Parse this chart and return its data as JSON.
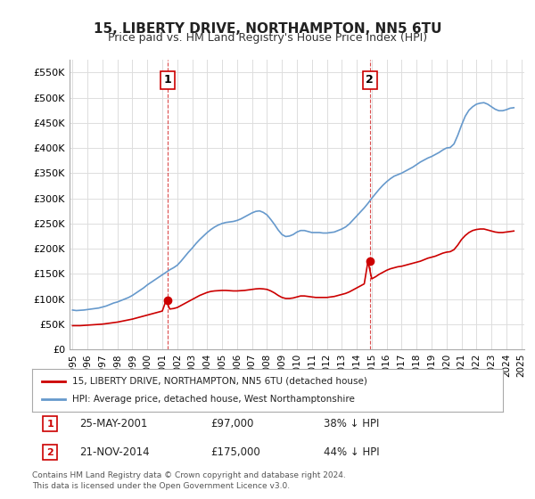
{
  "title": "15, LIBERTY DRIVE, NORTHAMPTON, NN5 6TU",
  "subtitle": "Price paid vs. HM Land Registry's House Price Index (HPI)",
  "legend_line1": "15, LIBERTY DRIVE, NORTHAMPTON, NN5 6TU (detached house)",
  "legend_line2": "HPI: Average price, detached house, West Northamptonshire",
  "footnote": "Contains HM Land Registry data © Crown copyright and database right 2024.\nThis data is licensed under the Open Government Licence v3.0.",
  "table_rows": [
    {
      "num": "1",
      "date": "25-MAY-2001",
      "price": "£97,000",
      "hpi": "38% ↓ HPI"
    },
    {
      "num": "2",
      "date": "21-NOV-2014",
      "price": "£175,000",
      "hpi": "44% ↓ HPI"
    }
  ],
  "sale_dates": [
    "2001-05-25",
    "2014-11-21"
  ],
  "sale_prices": [
    97000,
    175000
  ],
  "ylim": [
    0,
    575000
  ],
  "yticks": [
    0,
    50000,
    100000,
    150000,
    200000,
    250000,
    300000,
    350000,
    400000,
    450000,
    500000,
    550000
  ],
  "ytick_labels": [
    "£0",
    "£50K",
    "£100K",
    "£150K",
    "£200K",
    "£250K",
    "£300K",
    "£350K",
    "£400K",
    "£450K",
    "£500K",
    "£550K"
  ],
  "red_line_color": "#cc0000",
  "blue_line_color": "#6699cc",
  "annotation_color": "#cc0000",
  "background_color": "#ffffff",
  "grid_color": "#dddddd",
  "hpi_x": [
    1995.0,
    1995.25,
    1995.5,
    1995.75,
    1996.0,
    1996.25,
    1996.5,
    1996.75,
    1997.0,
    1997.25,
    1997.5,
    1997.75,
    1998.0,
    1998.25,
    1998.5,
    1998.75,
    1999.0,
    1999.25,
    1999.5,
    1999.75,
    2000.0,
    2000.25,
    2000.5,
    2000.75,
    2001.0,
    2001.25,
    2001.5,
    2001.75,
    2002.0,
    2002.25,
    2002.5,
    2002.75,
    2003.0,
    2003.25,
    2003.5,
    2003.75,
    2004.0,
    2004.25,
    2004.5,
    2004.75,
    2005.0,
    2005.25,
    2005.5,
    2005.75,
    2006.0,
    2006.25,
    2006.5,
    2006.75,
    2007.0,
    2007.25,
    2007.5,
    2007.75,
    2008.0,
    2008.25,
    2008.5,
    2008.75,
    2009.0,
    2009.25,
    2009.5,
    2009.75,
    2010.0,
    2010.25,
    2010.5,
    2010.75,
    2011.0,
    2011.25,
    2011.5,
    2011.75,
    2012.0,
    2012.25,
    2012.5,
    2012.75,
    2013.0,
    2013.25,
    2013.5,
    2013.75,
    2014.0,
    2014.25,
    2014.5,
    2014.75,
    2015.0,
    2015.25,
    2015.5,
    2015.75,
    2016.0,
    2016.25,
    2016.5,
    2016.75,
    2017.0,
    2017.25,
    2017.5,
    2017.75,
    2018.0,
    2018.25,
    2018.5,
    2018.75,
    2019.0,
    2019.25,
    2019.5,
    2019.75,
    2020.0,
    2020.25,
    2020.5,
    2020.75,
    2021.0,
    2021.25,
    2021.5,
    2021.75,
    2022.0,
    2022.25,
    2022.5,
    2022.75,
    2023.0,
    2023.25,
    2023.5,
    2023.75,
    2024.0,
    2024.25,
    2024.5
  ],
  "hpi_y": [
    78000,
    77000,
    77500,
    78000,
    79000,
    80000,
    81000,
    82000,
    84000,
    86000,
    89000,
    92000,
    94000,
    97000,
    100000,
    103000,
    107000,
    112000,
    117000,
    122000,
    128000,
    133000,
    138000,
    143000,
    148000,
    153000,
    158000,
    162000,
    167000,
    175000,
    184000,
    193000,
    201000,
    210000,
    218000,
    225000,
    232000,
    238000,
    243000,
    247000,
    250000,
    252000,
    253000,
    254000,
    256000,
    259000,
    263000,
    267000,
    271000,
    274000,
    275000,
    272000,
    267000,
    258000,
    248000,
    237000,
    228000,
    224000,
    225000,
    228000,
    233000,
    236000,
    236000,
    234000,
    232000,
    232000,
    232000,
    231000,
    231000,
    232000,
    233000,
    236000,
    239000,
    243000,
    249000,
    257000,
    265000,
    273000,
    281000,
    290000,
    300000,
    309000,
    318000,
    326000,
    333000,
    339000,
    344000,
    347000,
    350000,
    354000,
    358000,
    362000,
    367000,
    372000,
    376000,
    380000,
    383000,
    387000,
    391000,
    396000,
    400000,
    401000,
    408000,
    425000,
    445000,
    463000,
    475000,
    482000,
    487000,
    489000,
    490000,
    487000,
    482000,
    477000,
    474000,
    474000,
    476000,
    479000,
    480000
  ],
  "red_x": [
    1995.0,
    1995.25,
    1995.5,
    1995.75,
    1996.0,
    1996.25,
    1996.5,
    1996.75,
    1997.0,
    1997.25,
    1997.5,
    1997.75,
    1998.0,
    1998.25,
    1998.5,
    1998.75,
    1999.0,
    1999.25,
    1999.5,
    1999.75,
    2000.0,
    2000.25,
    2000.5,
    2000.75,
    2001.0,
    2001.25,
    2001.5,
    2001.75,
    2002.0,
    2002.25,
    2002.5,
    2002.75,
    2003.0,
    2003.25,
    2003.5,
    2003.75,
    2004.0,
    2004.25,
    2004.5,
    2004.75,
    2005.0,
    2005.25,
    2005.5,
    2005.75,
    2006.0,
    2006.25,
    2006.5,
    2006.75,
    2007.0,
    2007.25,
    2007.5,
    2007.75,
    2008.0,
    2008.25,
    2008.5,
    2008.75,
    2009.0,
    2009.25,
    2009.5,
    2009.75,
    2010.0,
    2010.25,
    2010.5,
    2010.75,
    2011.0,
    2011.25,
    2011.5,
    2011.75,
    2012.0,
    2012.25,
    2012.5,
    2012.75,
    2013.0,
    2013.25,
    2013.5,
    2013.75,
    2014.0,
    2014.25,
    2014.5,
    2014.75,
    2015.0,
    2015.25,
    2015.5,
    2015.75,
    2016.0,
    2016.25,
    2016.5,
    2016.75,
    2017.0,
    2017.25,
    2017.5,
    2017.75,
    2018.0,
    2018.25,
    2018.5,
    2018.75,
    2019.0,
    2019.25,
    2019.5,
    2019.75,
    2020.0,
    2020.25,
    2020.5,
    2020.75,
    2021.0,
    2021.25,
    2021.5,
    2021.75,
    2022.0,
    2022.25,
    2022.5,
    2022.75,
    2023.0,
    2023.25,
    2023.5,
    2023.75,
    2024.0,
    2024.25,
    2024.5
  ],
  "red_y": [
    47000,
    47000,
    47000,
    47500,
    48000,
    48500,
    49000,
    49500,
    50000,
    51000,
    52000,
    53000,
    54000,
    55500,
    57000,
    58500,
    60000,
    62000,
    64000,
    66000,
    68000,
    70000,
    72000,
    74000,
    76000,
    97000,
    80000,
    81000,
    83000,
    87000,
    91000,
    95000,
    99000,
    103000,
    107000,
    110000,
    113000,
    115000,
    116000,
    116500,
    117000,
    117000,
    116500,
    116000,
    116000,
    116500,
    117000,
    118000,
    119000,
    120000,
    120500,
    120000,
    119000,
    116000,
    112000,
    107000,
    103000,
    101000,
    101000,
    102000,
    104000,
    106000,
    106000,
    105000,
    104000,
    103000,
    103000,
    103000,
    103000,
    104000,
    105000,
    107000,
    109000,
    111000,
    114000,
    118000,
    122000,
    126000,
    130000,
    175000,
    140000,
    144000,
    149000,
    153000,
    157000,
    160000,
    162000,
    164000,
    165000,
    167000,
    169000,
    171000,
    173000,
    175000,
    178000,
    181000,
    183000,
    185000,
    188000,
    191000,
    193000,
    194000,
    198000,
    207000,
    218000,
    226000,
    232000,
    236000,
    238000,
    239000,
    239000,
    237000,
    235000,
    233000,
    232000,
    232000,
    233000,
    234000,
    235000
  ],
  "xlim": [
    1994.8,
    2025.2
  ],
  "xticks": [
    1995,
    1996,
    1997,
    1998,
    1999,
    2000,
    2001,
    2002,
    2003,
    2004,
    2005,
    2006,
    2007,
    2008,
    2009,
    2010,
    2011,
    2012,
    2013,
    2014,
    2015,
    2016,
    2017,
    2018,
    2019,
    2020,
    2021,
    2022,
    2023,
    2024,
    2025
  ]
}
